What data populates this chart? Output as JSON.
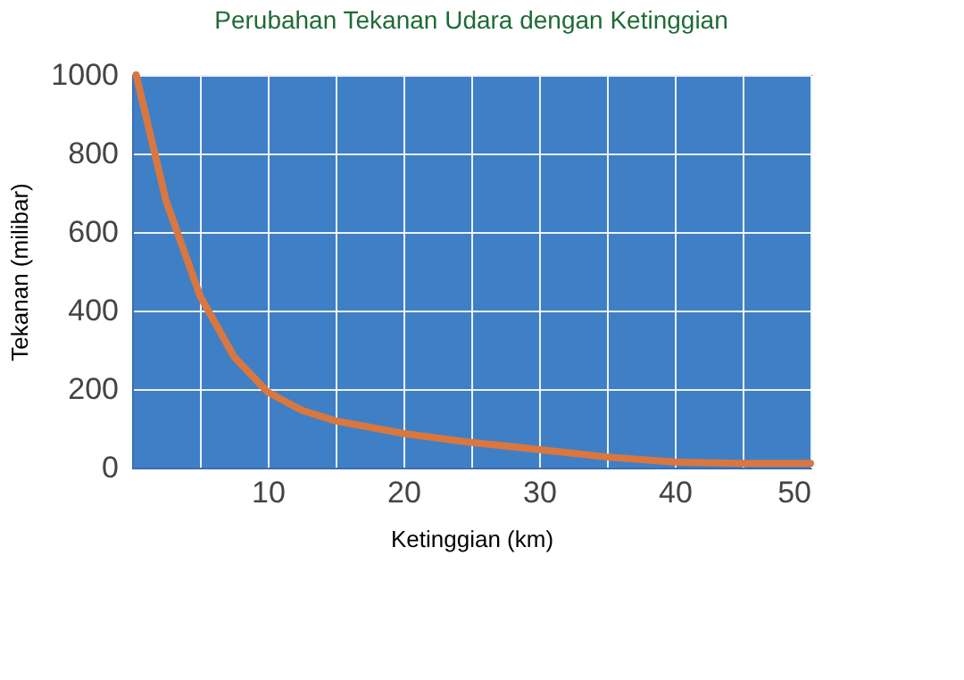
{
  "chart_data": {
    "type": "line",
    "title": "Perubahan Tekanan Udara dengan Ketinggian",
    "xlabel": "Ketinggian (km)",
    "ylabel": "Tekanan (milibar)",
    "series": [
      {
        "color": "#d9773f",
        "x": [
          0.3,
          2.5,
          5,
          7.5,
          10,
          12.5,
          15,
          20,
          25,
          30,
          35,
          40,
          45,
          50
        ],
        "values": [
          1000,
          680,
          438,
          283,
          192,
          146,
          119,
          87,
          64,
          46,
          27,
          14,
          11,
          11
        ]
      }
    ],
    "xlim": [
      0,
      50
    ],
    "ylim": [
      0,
      1000
    ],
    "xticks": [
      {
        "value": 0,
        "label": null
      },
      {
        "value": 5,
        "label": null
      },
      10,
      {
        "value": 15,
        "label": null
      },
      20,
      {
        "value": 25,
        "label": null
      },
      30,
      {
        "value": 35,
        "label": null
      },
      40,
      {
        "value": 45,
        "label": null
      },
      50
    ],
    "yticks": [
      0,
      200,
      400,
      600,
      800,
      1000
    ],
    "grid": true,
    "line_style": "solid",
    "marker": "none"
  }
}
